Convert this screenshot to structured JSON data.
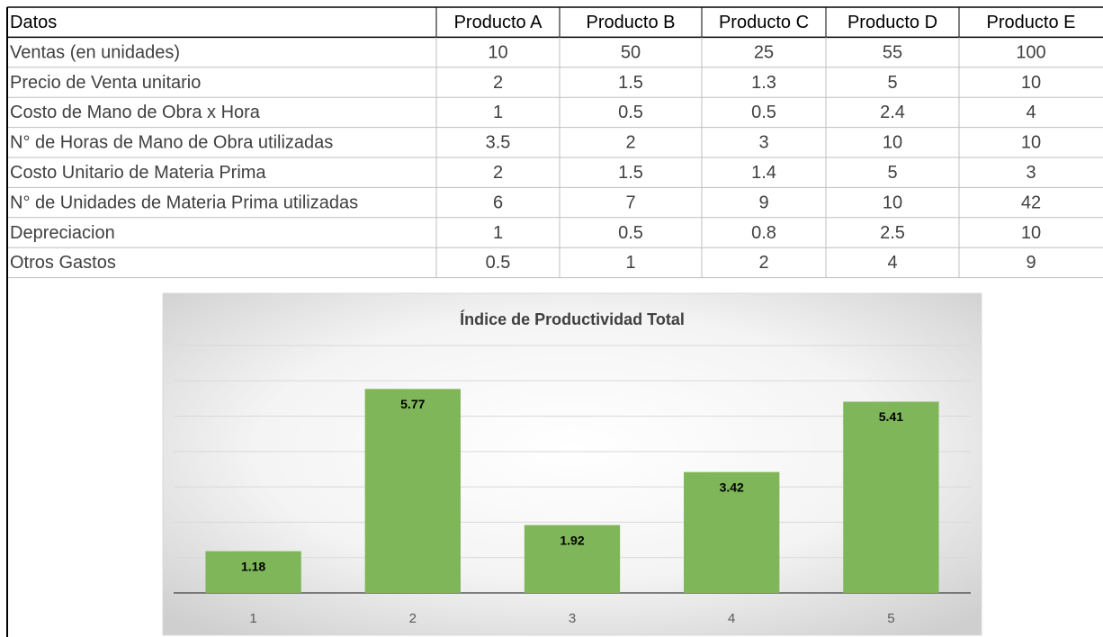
{
  "table": {
    "header": [
      "Datos",
      "Producto A",
      "Producto B",
      "Producto C",
      "Producto D",
      "Producto E"
    ],
    "rows": [
      [
        "Ventas (en unidades)",
        "10",
        "50",
        "25",
        "55",
        "100"
      ],
      [
        "Precio de Venta unitario",
        "2",
        "1.5",
        "1.3",
        "5",
        "10"
      ],
      [
        "Costo de Mano de Obra x Hora",
        "1",
        "0.5",
        "0.5",
        "2.4",
        "4"
      ],
      [
        "N° de Horas de Mano de Obra utilizadas",
        "3.5",
        "2",
        "3",
        "10",
        "10"
      ],
      [
        "Costo Unitario de Materia Prima",
        "2",
        "1.5",
        "1.4",
        "5",
        "3"
      ],
      [
        "N° de Unidades de Materia Prima utilizadas",
        "6",
        "7",
        "9",
        "10",
        "42"
      ],
      [
        "Depreciacion",
        "1",
        "0.5",
        "0.8",
        "2.5",
        "10"
      ],
      [
        "Otros Gastos",
        "0.5",
        "1",
        "2",
        "4",
        "9"
      ]
    ]
  },
  "chart_data": {
    "type": "bar",
    "title": "Índice de Productividad Total",
    "categories": [
      "1",
      "2",
      "3",
      "4",
      "5"
    ],
    "values": [
      1.18,
      5.77,
      1.92,
      3.42,
      5.41
    ],
    "color": "#7fb65a",
    "ylim": [
      0,
      7
    ],
    "yticks": [
      0,
      1,
      2,
      3,
      4,
      5,
      6,
      7
    ],
    "grid": true
  }
}
